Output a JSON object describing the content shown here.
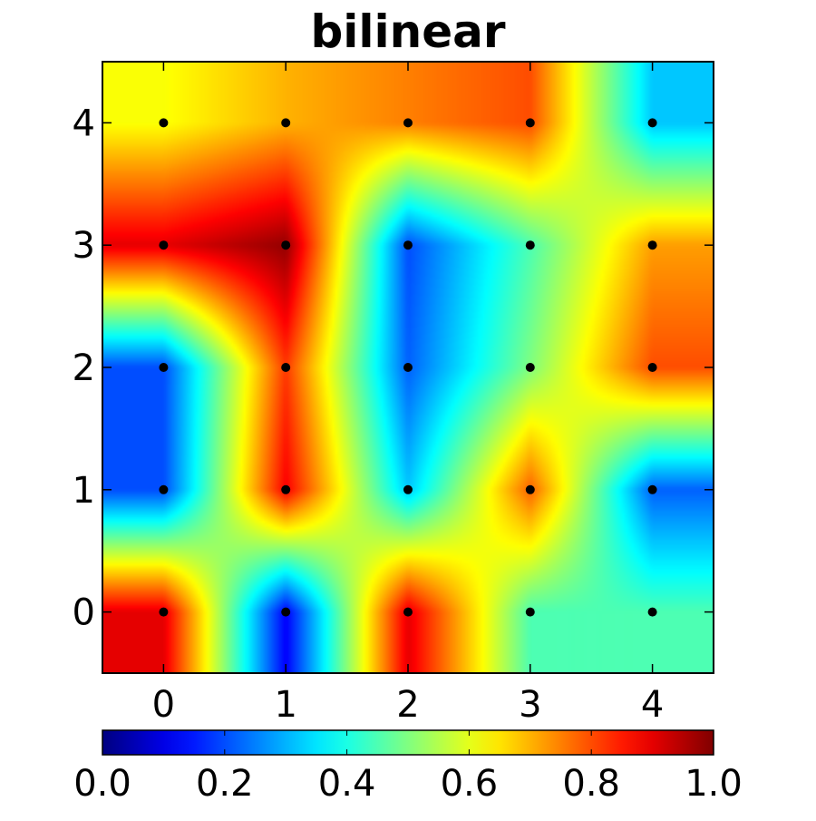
{
  "chart_data": {
    "type": "heatmap",
    "title": "bilinear",
    "xlabel": "",
    "ylabel": "",
    "x": [
      0,
      1,
      2,
      3,
      4
    ],
    "y": [
      0,
      1,
      2,
      3,
      4
    ],
    "xlim": [
      -0.5,
      4.5
    ],
    "ylim": [
      -0.5,
      4.5
    ],
    "x_ticks": [
      "0",
      "1",
      "2",
      "3",
      "4"
    ],
    "y_ticks": [
      "0",
      "1",
      "2",
      "3",
      "4"
    ],
    "z": [
      [
        0.9,
        0.12,
        0.9,
        0.45,
        0.45
      ],
      [
        0.2,
        0.88,
        0.32,
        0.78,
        0.22
      ],
      [
        0.2,
        0.82,
        0.22,
        0.5,
        0.8
      ],
      [
        0.9,
        0.98,
        0.2,
        0.45,
        0.72
      ],
      [
        0.62,
        0.7,
        0.75,
        0.8,
        0.32
      ]
    ],
    "colormap": "jet",
    "interpolation": "bilinear",
    "markers": "black dots at every grid point",
    "grid": false,
    "colorbar": {
      "orientation": "horizontal",
      "placement": "bottom",
      "range": [
        0.0,
        1.0
      ],
      "ticks": [
        "0.0",
        "0.2",
        "0.4",
        "0.6",
        "0.8",
        "1.0"
      ]
    }
  }
}
